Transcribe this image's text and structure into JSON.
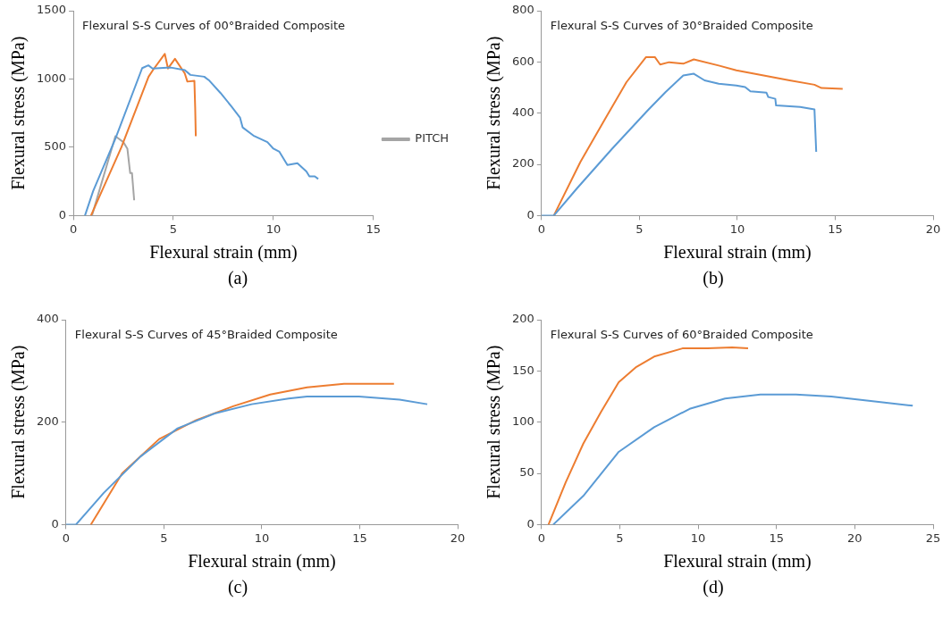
{
  "chart_data": [
    {
      "type": "line",
      "title": "Flexural S-S Curves of 00°Braided Composite",
      "xlabel": "Flexural strain (mm)",
      "ylabel": "Flexural stress (MPa)",
      "xlim": [
        0,
        15
      ],
      "xticks": [
        0,
        5,
        10,
        15
      ],
      "ylim": [
        0,
        1500
      ],
      "yticks": [
        0,
        500,
        1000,
        1500
      ],
      "grid": false,
      "legend": "right",
      "marker": "none",
      "annotations": [
        "(a)"
      ],
      "series": [
        {
          "color": "#5b9bd5",
          "x": [
            0.58,
            0.99,
            2.1,
            3.44,
            3.75,
            3.96,
            4.87,
            5.57,
            5.85,
            6.54,
            6.8,
            7.36,
            7.9,
            8.33,
            8.46,
            9.0,
            9.7,
            10.0,
            10.3,
            10.7,
            11.2,
            11.65,
            11.8,
            12.07,
            12.24
          ],
          "values": [
            0,
            180,
            562,
            1080,
            1100,
            1077,
            1084,
            1065,
            1030,
            1017,
            988,
            897,
            800,
            718,
            646,
            586,
            538,
            490,
            467,
            371,
            383,
            323,
            287,
            287,
            268
          ]
        },
        {
          "color": "#ed7d31",
          "x": [
            0.88,
            2.4,
            3.76,
            4.0,
            4.57,
            4.73,
            5.08,
            5.57,
            5.7,
            6.05,
            6.09,
            6.12
          ],
          "values": [
            0,
            500,
            1017,
            1070,
            1184,
            1077,
            1148,
            1041,
            981,
            986,
            789,
            581
          ]
        },
        {
          "name": "PITCH",
          "color": "#a5a5a5",
          "x": [
            0.93,
            2.1,
            2.5,
            2.7,
            2.84,
            2.93,
            3.04
          ],
          "values": [
            0,
            581,
            538,
            490,
            311,
            311,
            112
          ]
        }
      ]
    },
    {
      "type": "line",
      "title": "Flexural S-S Curves of 30°Braided Composite",
      "xlabel": "Flexural strain (mm)",
      "ylabel": "Flexural stress (MPa)",
      "xlim": [
        0,
        20
      ],
      "xticks": [
        0,
        5,
        10,
        15,
        20
      ],
      "ylim": [
        0,
        800
      ],
      "yticks": [
        0,
        200,
        400,
        600,
        800
      ],
      "grid": false,
      "marker": "none",
      "annotations": [
        "(b)"
      ],
      "series": [
        {
          "color": "#5b9bd5",
          "x": [
            0,
            0.63,
            1.81,
            3.62,
            5.43,
            6.33,
            7.24,
            7.78,
            8.33,
            9.05,
            9.95,
            10.4,
            10.67,
            11.49,
            11.58,
            11.94,
            11.98,
            13.21,
            13.94,
            14.03
          ],
          "values": [
            0,
            0,
            106,
            262,
            411,
            482,
            547,
            554,
            528,
            515,
            508,
            502,
            485,
            480,
            463,
            456,
            430,
            424,
            415,
            249
          ]
        },
        {
          "color": "#ed7d31",
          "x": [
            0.63,
            1.99,
            3.26,
            4.34,
            5.34,
            5.79,
            6.06,
            6.52,
            7.24,
            7.78,
            9.05,
            9.95,
            10.86,
            12.67,
            13.94,
            14.3,
            15.38
          ],
          "values": [
            0,
            210,
            379,
            521,
            619,
            619,
            590,
            599,
            593,
            610,
            586,
            567,
            554,
            528,
            511,
            498,
            495
          ]
        }
      ]
    },
    {
      "type": "line",
      "title": "Flexural S-S Curves of 45°Braided Composite",
      "xlabel": "Flexural strain (mm)",
      "ylabel": "Flexural stress (MPa)",
      "xlim": [
        0,
        20
      ],
      "xticks": [
        0,
        5,
        10,
        15,
        20
      ],
      "ylim": [
        0,
        400
      ],
      "yticks": [
        0,
        200,
        400
      ],
      "grid": false,
      "marker": "none",
      "annotations": [
        "(c)"
      ],
      "series": [
        {
          "color": "#5b9bd5",
          "x": [
            0,
            0.51,
            1.93,
            3.81,
            5.7,
            7.59,
            9.48,
            11.37,
            12.31,
            14.96,
            17.04,
            18.45
          ],
          "values": [
            0,
            0,
            62,
            133,
            188,
            217,
            235,
            246,
            250,
            250,
            244,
            235
          ]
        },
        {
          "color": "#ed7d31",
          "x": [
            1.27,
            2.87,
            4.76,
            6.65,
            8.54,
            10.43,
            12.31,
            14.2,
            16.75
          ],
          "values": [
            0,
            100,
            167,
            204,
            231,
            254,
            268,
            275,
            275
          ]
        }
      ]
    },
    {
      "type": "line",
      "title": "Flexural S-S Curves of 60°Braided Composite",
      "xlabel": "Flexural strain (mm)",
      "ylabel": "Flexural stress (MPa)",
      "xlim": [
        0,
        25
      ],
      "xticks": [
        0,
        5,
        10,
        15,
        20,
        25
      ],
      "ylim": [
        0,
        200
      ],
      "yticks": [
        0,
        50,
        100,
        150,
        200
      ],
      "grid": false,
      "marker": "none",
      "annotations": [
        "(d)"
      ],
      "series": [
        {
          "color": "#ed7d31",
          "x": [
            0.45,
            1.54,
            2.67,
            3.8,
            4.93,
            6.06,
            7.19,
            9.0,
            10.6,
            12.17,
            13.19
          ],
          "values": [
            0,
            41,
            79,
            110,
            139,
            154,
            164,
            172,
            172,
            173,
            172
          ]
        },
        {
          "color": "#5b9bd5",
          "x": [
            0.75,
            2.67,
            4.93,
            7.19,
            9.46,
            11.72,
            13.98,
            16.24,
            18.5,
            20.77,
            23.7
          ],
          "values": [
            0,
            28,
            71,
            95,
            113,
            123,
            127,
            127,
            125,
            121,
            116
          ]
        }
      ]
    }
  ]
}
